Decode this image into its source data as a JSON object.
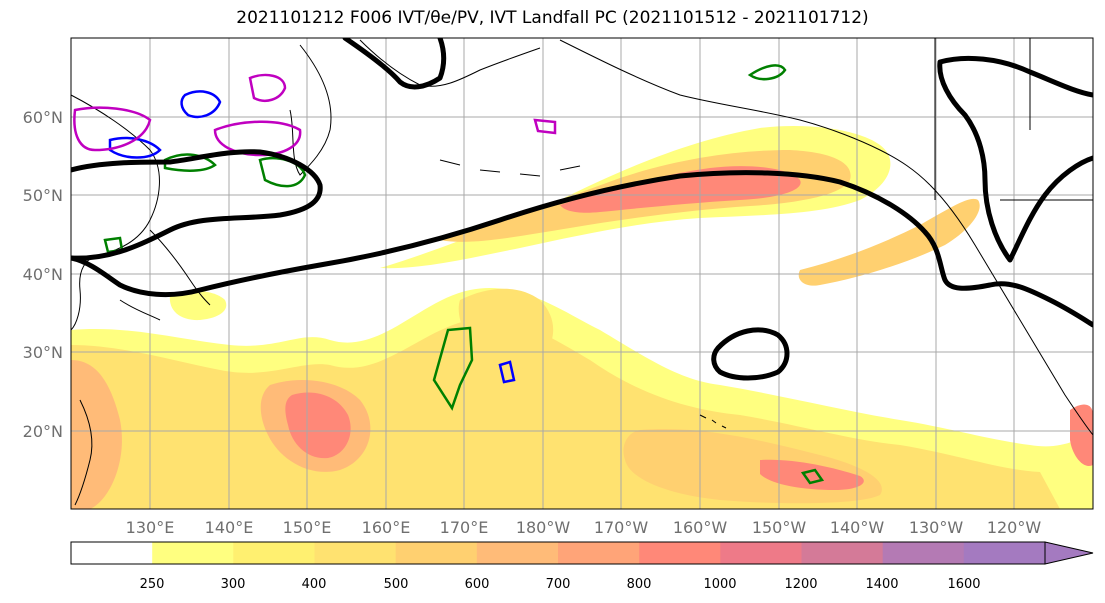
{
  "title": "2021101212 F006 IVT/θe/PV, IVT Landfall PC (2021101512 - 2021101712)",
  "map": {
    "lat_labels": [
      "60°N",
      "50°N",
      "40°N",
      "30°N",
      "20°N"
    ],
    "lon_labels": [
      "130°E",
      "140°E",
      "150°E",
      "160°E",
      "170°E",
      "180°W",
      "170°W",
      "160°W",
      "150°W",
      "140°W",
      "130°W",
      "120°W"
    ],
    "extent": {
      "lon_min": 120,
      "lon_max": 250,
      "lat_min": 10,
      "lat_max": 70
    },
    "grid": true,
    "layers": {
      "ivt_fill": "shaded integrated vapor transport",
      "pc_contour_color": "#000000",
      "theta_e_contour_color": "#008000",
      "pv_contour_colors": [
        "#0000ff",
        "#c000c0"
      ]
    }
  },
  "colorbar": {
    "labels": [
      "250",
      "300",
      "400",
      "500",
      "600",
      "700",
      "800",
      "1000",
      "1200",
      "1400",
      "1600"
    ],
    "colors": [
      "#ffffff",
      "#ffff80",
      "#fff070",
      "#ffe270",
      "#ffd070",
      "#ffbb78",
      "#ffa478",
      "#ff8878",
      "#ee7a88",
      "#d47a98",
      "#b47ab4",
      "#a47ac0"
    ],
    "extend": "max"
  }
}
